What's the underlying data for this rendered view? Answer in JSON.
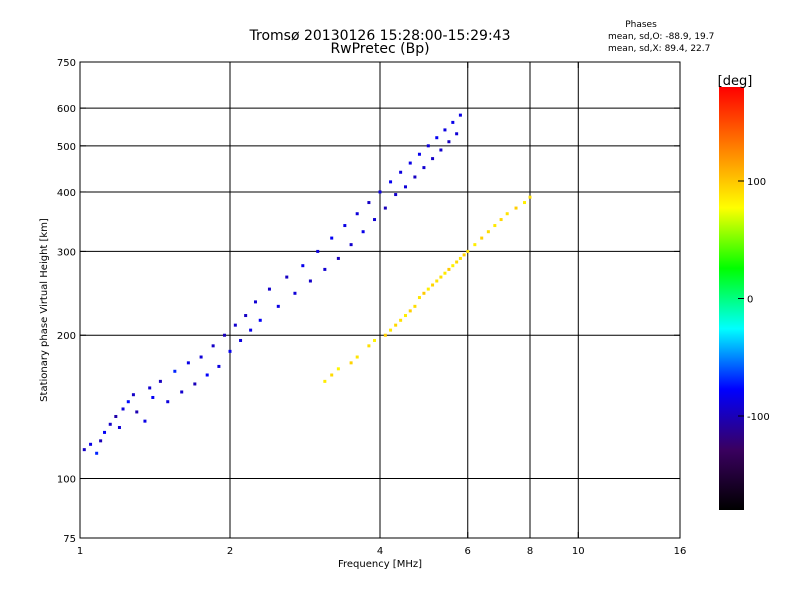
{
  "chart_data": {
    "type": "scatter",
    "title": "Tromsø 20130126 15:28:00-15:29:43",
    "subtitle": "RwPretec (Bp)",
    "xlabel": "Frequency [MHz]",
    "ylabel": "Stationary phase Virtual Height [km]",
    "x_scale": "log",
    "y_scale": "log",
    "xlim": [
      1,
      16
    ],
    "ylim": [
      75,
      750
    ],
    "x_ticks": [
      {
        "value": 1,
        "label": "1"
      },
      {
        "value": 2,
        "label": "2"
      },
      {
        "value": 4,
        "label": "4"
      },
      {
        "value": 6,
        "label": "6"
      },
      {
        "value": 8,
        "label": "8"
      },
      {
        "value": 10,
        "label": "10"
      },
      {
        "value": 16,
        "label": "16"
      }
    ],
    "y_ticks": [
      {
        "value": 75,
        "label": "75"
      },
      {
        "value": 100,
        "label": "100"
      },
      {
        "value": 200,
        "label": "200"
      },
      {
        "value": 300,
        "label": "300"
      },
      {
        "value": 400,
        "label": "400"
      },
      {
        "value": 500,
        "label": "500"
      },
      {
        "value": 600,
        "label": "600"
      },
      {
        "value": 750,
        "label": "750"
      }
    ],
    "grid_x": [
      2,
      4,
      6,
      8,
      10
    ],
    "grid_y": [
      100,
      200,
      300,
      400,
      500,
      600
    ],
    "grid": true,
    "stats": {
      "heading": "Phases",
      "line_o": "mean, sd,O: -88.9, 19.7",
      "line_x": "mean, sd,X:  89.4, 22.7"
    },
    "colorbar": {
      "label": "[deg]",
      "range": [
        -180,
        180
      ],
      "ticks": [
        {
          "value": 100,
          "label": "100"
        },
        {
          "value": 0,
          "label": "0"
        },
        {
          "value": -100,
          "label": "-100"
        }
      ],
      "colors": [
        "#000000",
        "#3a0060",
        "#0000ff",
        "#00ffff",
        "#00ff00",
        "#ffff00",
        "#ff7f00",
        "#ff0000"
      ]
    },
    "series": [
      {
        "values": [
          {
            "x": 1.02,
            "y": 115,
            "phase": -95
          },
          {
            "x": 1.05,
            "y": 118,
            "phase": -85
          },
          {
            "x": 1.08,
            "y": 113,
            "phase": -70
          },
          {
            "x": 1.1,
            "y": 120,
            "phase": -100
          },
          {
            "x": 1.12,
            "y": 125,
            "phase": -80
          },
          {
            "x": 1.15,
            "y": 130,
            "phase": -95
          },
          {
            "x": 1.18,
            "y": 135,
            "phase": -105
          },
          {
            "x": 1.2,
            "y": 128,
            "phase": -90
          },
          {
            "x": 1.22,
            "y": 140,
            "phase": -88
          },
          {
            "x": 1.25,
            "y": 145,
            "phase": -75
          },
          {
            "x": 1.28,
            "y": 150,
            "phase": -95
          },
          {
            "x": 1.3,
            "y": 138,
            "phase": -102
          },
          {
            "x": 1.35,
            "y": 132,
            "phase": -85
          },
          {
            "x": 1.38,
            "y": 155,
            "phase": -92
          },
          {
            "x": 1.4,
            "y": 148,
            "phase": -80
          },
          {
            "x": 1.45,
            "y": 160,
            "phase": -98
          },
          {
            "x": 1.5,
            "y": 145,
            "phase": -88
          },
          {
            "x": 1.55,
            "y": 168,
            "phase": -70
          },
          {
            "x": 1.6,
            "y": 152,
            "phase": -93
          },
          {
            "x": 1.65,
            "y": 175,
            "phase": -85
          },
          {
            "x": 1.7,
            "y": 158,
            "phase": -100
          },
          {
            "x": 1.75,
            "y": 180,
            "phase": -90
          },
          {
            "x": 1.8,
            "y": 165,
            "phase": -78
          },
          {
            "x": 1.85,
            "y": 190,
            "phase": -95
          },
          {
            "x": 1.9,
            "y": 172,
            "phase": -87
          },
          {
            "x": 1.95,
            "y": 200,
            "phase": -99
          },
          {
            "x": 2.0,
            "y": 185,
            "phase": -82
          },
          {
            "x": 2.05,
            "y": 210,
            "phase": -93
          },
          {
            "x": 2.1,
            "y": 195,
            "phase": -88
          },
          {
            "x": 2.15,
            "y": 220,
            "phase": -96
          },
          {
            "x": 2.2,
            "y": 205,
            "phase": -84
          },
          {
            "x": 2.25,
            "y": 235,
            "phase": -91
          },
          {
            "x": 2.3,
            "y": 215,
            "phase": -79
          },
          {
            "x": 2.4,
            "y": 250,
            "phase": -94
          },
          {
            "x": 2.5,
            "y": 230,
            "phase": -86
          },
          {
            "x": 2.6,
            "y": 265,
            "phase": -97
          },
          {
            "x": 2.7,
            "y": 245,
            "phase": -90
          },
          {
            "x": 2.8,
            "y": 280,
            "phase": -83
          },
          {
            "x": 2.9,
            "y": 260,
            "phase": -95
          },
          {
            "x": 3.0,
            "y": 300,
            "phase": -88
          },
          {
            "x": 3.1,
            "y": 275,
            "phase": -92
          },
          {
            "x": 3.2,
            "y": 320,
            "phase": -80
          },
          {
            "x": 3.3,
            "y": 290,
            "phase": -98
          },
          {
            "x": 3.4,
            "y": 340,
            "phase": -86
          },
          {
            "x": 3.5,
            "y": 310,
            "phase": -93
          },
          {
            "x": 3.6,
            "y": 360,
            "phase": -89
          },
          {
            "x": 3.7,
            "y": 330,
            "phase": -84
          },
          {
            "x": 3.8,
            "y": 380,
            "phase": -96
          },
          {
            "x": 3.9,
            "y": 350,
            "phase": -91
          },
          {
            "x": 4.0,
            "y": 400,
            "phase": -87
          },
          {
            "x": 4.1,
            "y": 370,
            "phase": -99
          },
          {
            "x": 4.2,
            "y": 420,
            "phase": -82
          },
          {
            "x": 4.3,
            "y": 395,
            "phase": -94
          },
          {
            "x": 4.4,
            "y": 440,
            "phase": -88
          },
          {
            "x": 4.5,
            "y": 410,
            "phase": -90
          },
          {
            "x": 4.6,
            "y": 460,
            "phase": -85
          },
          {
            "x": 4.7,
            "y": 430,
            "phase": -97
          },
          {
            "x": 4.8,
            "y": 480,
            "phase": -83
          },
          {
            "x": 4.9,
            "y": 450,
            "phase": -92
          },
          {
            "x": 5.0,
            "y": 500,
            "phase": -89
          },
          {
            "x": 5.1,
            "y": 470,
            "phase": -95
          },
          {
            "x": 5.2,
            "y": 520,
            "phase": -81
          },
          {
            "x": 5.3,
            "y": 490,
            "phase": -93
          },
          {
            "x": 5.4,
            "y": 540,
            "phase": -87
          },
          {
            "x": 5.5,
            "y": 510,
            "phase": -98
          },
          {
            "x": 5.6,
            "y": 560,
            "phase": -84
          },
          {
            "x": 5.7,
            "y": 530,
            "phase": -91
          },
          {
            "x": 5.8,
            "y": 580,
            "phase": -86
          }
        ]
      },
      {
        "values": [
          {
            "x": 3.1,
            "y": 160,
            "phase": 85
          },
          {
            "x": 3.2,
            "y": 165,
            "phase": 92
          },
          {
            "x": 3.3,
            "y": 170,
            "phase": 80
          },
          {
            "x": 3.5,
            "y": 175,
            "phase": 95
          },
          {
            "x": 3.6,
            "y": 180,
            "phase": 88
          },
          {
            "x": 3.8,
            "y": 190,
            "phase": 90
          },
          {
            "x": 3.9,
            "y": 195,
            "phase": 82
          },
          {
            "x": 4.1,
            "y": 200,
            "phase": 97
          },
          {
            "x": 4.2,
            "y": 205,
            "phase": 86
          },
          {
            "x": 4.3,
            "y": 210,
            "phase": 93
          },
          {
            "x": 4.4,
            "y": 215,
            "phase": 89
          },
          {
            "x": 4.5,
            "y": 220,
            "phase": 84
          },
          {
            "x": 4.6,
            "y": 225,
            "phase": 96
          },
          {
            "x": 4.7,
            "y": 230,
            "phase": 91
          },
          {
            "x": 4.8,
            "y": 240,
            "phase": 87
          },
          {
            "x": 4.9,
            "y": 245,
            "phase": 99
          },
          {
            "x": 5.0,
            "y": 250,
            "phase": 83
          },
          {
            "x": 5.1,
            "y": 255,
            "phase": 94
          },
          {
            "x": 5.2,
            "y": 260,
            "phase": 88
          },
          {
            "x": 5.3,
            "y": 265,
            "phase": 90
          },
          {
            "x": 5.4,
            "y": 270,
            "phase": 85
          },
          {
            "x": 5.5,
            "y": 275,
            "phase": 98
          },
          {
            "x": 5.6,
            "y": 280,
            "phase": 82
          },
          {
            "x": 5.7,
            "y": 285,
            "phase": 92
          },
          {
            "x": 5.8,
            "y": 290,
            "phase": 87
          },
          {
            "x": 5.9,
            "y": 295,
            "phase": 95
          },
          {
            "x": 6.0,
            "y": 300,
            "phase": 89
          },
          {
            "x": 6.2,
            "y": 310,
            "phase": 84
          },
          {
            "x": 6.4,
            "y": 320,
            "phase": 96
          },
          {
            "x": 6.6,
            "y": 330,
            "phase": 91
          },
          {
            "x": 6.8,
            "y": 340,
            "phase": 86
          },
          {
            "x": 7.0,
            "y": 350,
            "phase": 93
          },
          {
            "x": 7.2,
            "y": 360,
            "phase": 88
          },
          {
            "x": 7.5,
            "y": 370,
            "phase": 97
          },
          {
            "x": 7.8,
            "y": 380,
            "phase": 83
          },
          {
            "x": 8.0,
            "y": 390,
            "phase": 90
          }
        ]
      }
    ]
  }
}
